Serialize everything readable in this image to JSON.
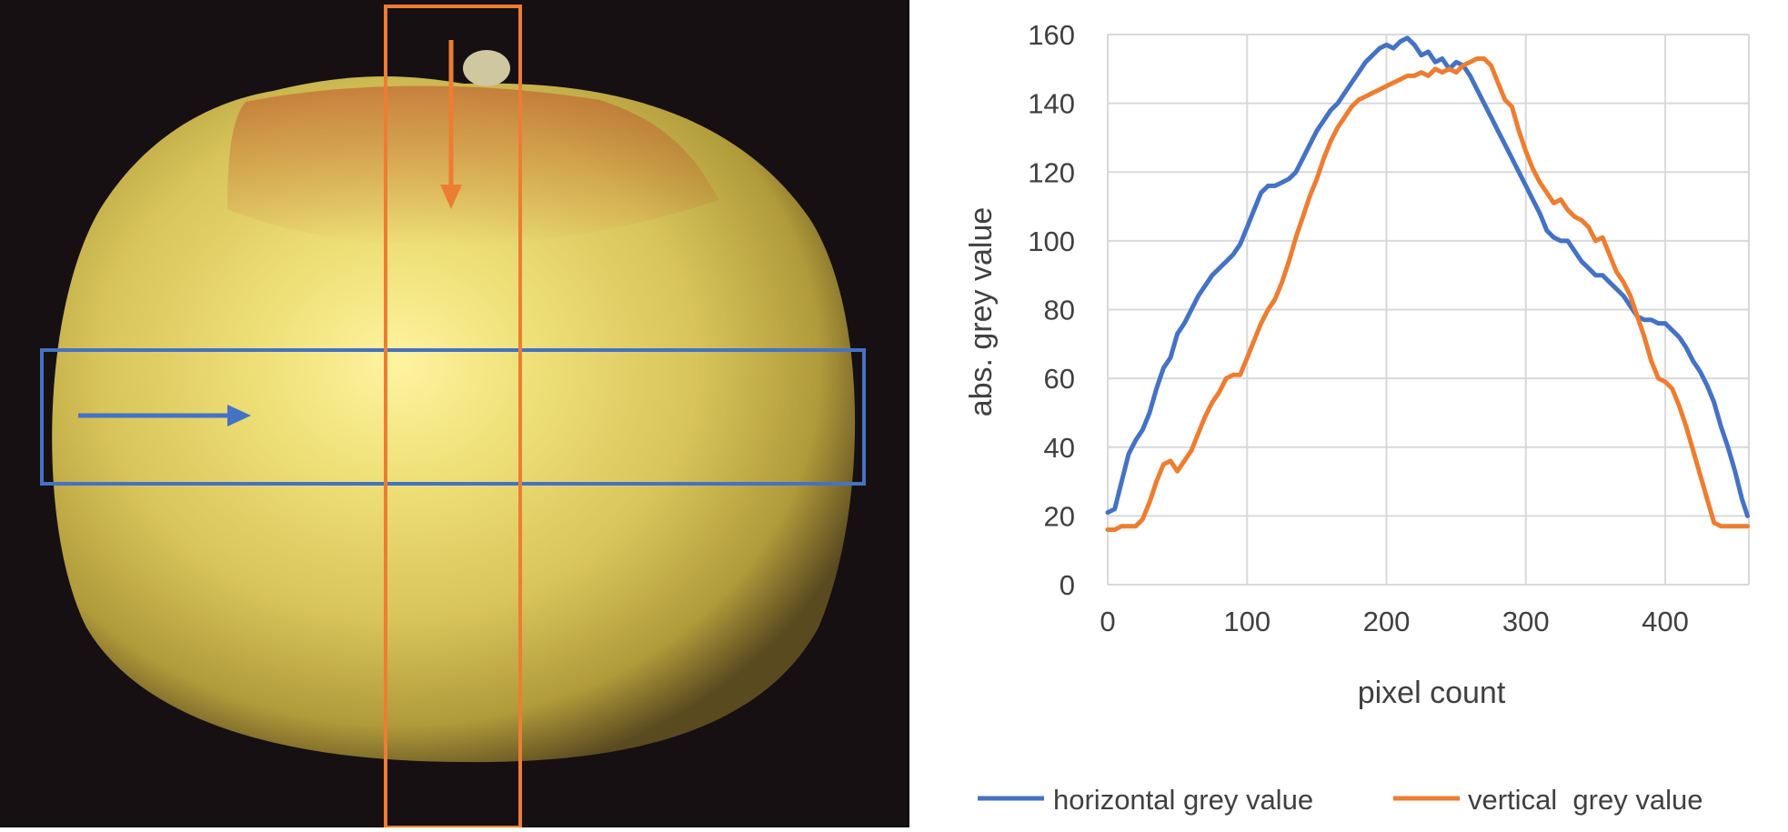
{
  "colors": {
    "horizontal": "#4472c4",
    "vertical": "#ed7d31",
    "grid": "#d9d9d9",
    "photo_background": "#161012",
    "apple_yellow": "#e6d56a",
    "apple_highlight": "#fff3a0",
    "apple_blush": "#c0502a"
  },
  "photo": {
    "subject": "apple",
    "horizontal_arrow_icon": "arrow-right-icon",
    "vertical_arrow_icon": "arrow-down-icon"
  },
  "chart_data": {
    "type": "line",
    "xlabel": "pixel count",
    "ylabel": "abs. grey value",
    "xlim": [
      0,
      460
    ],
    "ylim": [
      0,
      160
    ],
    "xticks": [
      0,
      100,
      200,
      300,
      400
    ],
    "yticks": [
      0,
      20,
      40,
      60,
      80,
      100,
      120,
      140,
      160
    ],
    "grid": true,
    "legend_position": "bottom",
    "series": [
      {
        "name": "horizontal grey value",
        "color": "#4472c4",
        "points": [
          [
            0,
            21
          ],
          [
            5,
            22
          ],
          [
            10,
            30
          ],
          [
            15,
            38
          ],
          [
            20,
            42
          ],
          [
            25,
            45
          ],
          [
            30,
            50
          ],
          [
            35,
            57
          ],
          [
            40,
            63
          ],
          [
            45,
            66
          ],
          [
            50,
            73
          ],
          [
            55,
            76
          ],
          [
            60,
            80
          ],
          [
            65,
            84
          ],
          [
            70,
            87
          ],
          [
            75,
            90
          ],
          [
            80,
            92
          ],
          [
            85,
            94
          ],
          [
            90,
            96
          ],
          [
            95,
            99
          ],
          [
            100,
            104
          ],
          [
            105,
            109
          ],
          [
            110,
            114
          ],
          [
            115,
            116
          ],
          [
            120,
            116
          ],
          [
            125,
            117
          ],
          [
            130,
            118
          ],
          [
            135,
            120
          ],
          [
            140,
            124
          ],
          [
            145,
            128
          ],
          [
            150,
            132
          ],
          [
            155,
            135
          ],
          [
            160,
            138
          ],
          [
            165,
            140
          ],
          [
            170,
            143
          ],
          [
            175,
            146
          ],
          [
            180,
            149
          ],
          [
            185,
            152
          ],
          [
            190,
            154
          ],
          [
            195,
            156
          ],
          [
            200,
            157
          ],
          [
            205,
            156
          ],
          [
            210,
            158
          ],
          [
            215,
            159
          ],
          [
            220,
            157
          ],
          [
            225,
            154
          ],
          [
            230,
            155
          ],
          [
            235,
            152
          ],
          [
            240,
            153
          ],
          [
            245,
            150
          ],
          [
            250,
            152
          ],
          [
            255,
            151
          ],
          [
            260,
            148
          ],
          [
            265,
            144
          ],
          [
            270,
            140
          ],
          [
            275,
            136
          ],
          [
            280,
            132
          ],
          [
            285,
            128
          ],
          [
            290,
            124
          ],
          [
            295,
            120
          ],
          [
            300,
            116
          ],
          [
            305,
            112
          ],
          [
            310,
            108
          ],
          [
            315,
            103
          ],
          [
            320,
            101
          ],
          [
            325,
            100
          ],
          [
            330,
            100
          ],
          [
            335,
            97
          ],
          [
            340,
            94
          ],
          [
            345,
            92
          ],
          [
            350,
            90
          ],
          [
            355,
            90
          ],
          [
            360,
            88
          ],
          [
            365,
            86
          ],
          [
            370,
            84
          ],
          [
            375,
            81
          ],
          [
            380,
            78
          ],
          [
            385,
            77
          ],
          [
            390,
            77
          ],
          [
            395,
            76
          ],
          [
            400,
            76
          ],
          [
            405,
            74
          ],
          [
            410,
            72
          ],
          [
            415,
            69
          ],
          [
            420,
            65
          ],
          [
            425,
            62
          ],
          [
            430,
            58
          ],
          [
            435,
            53
          ],
          [
            440,
            46
          ],
          [
            445,
            40
          ],
          [
            450,
            33
          ],
          [
            455,
            25
          ],
          [
            459,
            20
          ]
        ]
      },
      {
        "name": "vertical  grey value",
        "color": "#ed7d31",
        "points": [
          [
            0,
            16
          ],
          [
            5,
            16
          ],
          [
            10,
            17
          ],
          [
            15,
            17
          ],
          [
            20,
            17
          ],
          [
            25,
            19
          ],
          [
            30,
            24
          ],
          [
            35,
            30
          ],
          [
            40,
            35
          ],
          [
            45,
            36
          ],
          [
            50,
            33
          ],
          [
            55,
            36
          ],
          [
            60,
            39
          ],
          [
            65,
            44
          ],
          [
            70,
            49
          ],
          [
            75,
            53
          ],
          [
            80,
            56
          ],
          [
            85,
            60
          ],
          [
            90,
            61
          ],
          [
            95,
            61
          ],
          [
            100,
            66
          ],
          [
            105,
            71
          ],
          [
            110,
            76
          ],
          [
            115,
            80
          ],
          [
            120,
            83
          ],
          [
            125,
            88
          ],
          [
            130,
            94
          ],
          [
            135,
            101
          ],
          [
            140,
            107
          ],
          [
            145,
            113
          ],
          [
            150,
            118
          ],
          [
            155,
            124
          ],
          [
            160,
            129
          ],
          [
            165,
            133
          ],
          [
            170,
            136
          ],
          [
            175,
            139
          ],
          [
            180,
            141
          ],
          [
            185,
            142
          ],
          [
            190,
            143
          ],
          [
            195,
            144
          ],
          [
            200,
            145
          ],
          [
            205,
            146
          ],
          [
            210,
            147
          ],
          [
            215,
            148
          ],
          [
            220,
            148
          ],
          [
            225,
            149
          ],
          [
            230,
            148
          ],
          [
            235,
            150
          ],
          [
            240,
            149
          ],
          [
            245,
            150
          ],
          [
            250,
            149
          ],
          [
            255,
            151
          ],
          [
            260,
            152
          ],
          [
            265,
            153
          ],
          [
            270,
            153
          ],
          [
            275,
            151
          ],
          [
            280,
            146
          ],
          [
            285,
            141
          ],
          [
            290,
            139
          ],
          [
            295,
            132
          ],
          [
            300,
            126
          ],
          [
            305,
            121
          ],
          [
            310,
            117
          ],
          [
            315,
            114
          ],
          [
            320,
            111
          ],
          [
            325,
            112
          ],
          [
            330,
            109
          ],
          [
            335,
            107
          ],
          [
            340,
            106
          ],
          [
            345,
            104
          ],
          [
            350,
            100
          ],
          [
            355,
            101
          ],
          [
            360,
            96
          ],
          [
            365,
            91
          ],
          [
            370,
            88
          ],
          [
            375,
            84
          ],
          [
            380,
            78
          ],
          [
            385,
            72
          ],
          [
            390,
            65
          ],
          [
            395,
            60
          ],
          [
            400,
            59
          ],
          [
            405,
            57
          ],
          [
            410,
            52
          ],
          [
            415,
            46
          ],
          [
            420,
            39
          ],
          [
            425,
            32
          ],
          [
            430,
            25
          ],
          [
            435,
            18
          ],
          [
            440,
            17
          ],
          [
            445,
            17
          ],
          [
            450,
            17
          ],
          [
            455,
            17
          ],
          [
            459,
            17
          ]
        ]
      }
    ]
  }
}
